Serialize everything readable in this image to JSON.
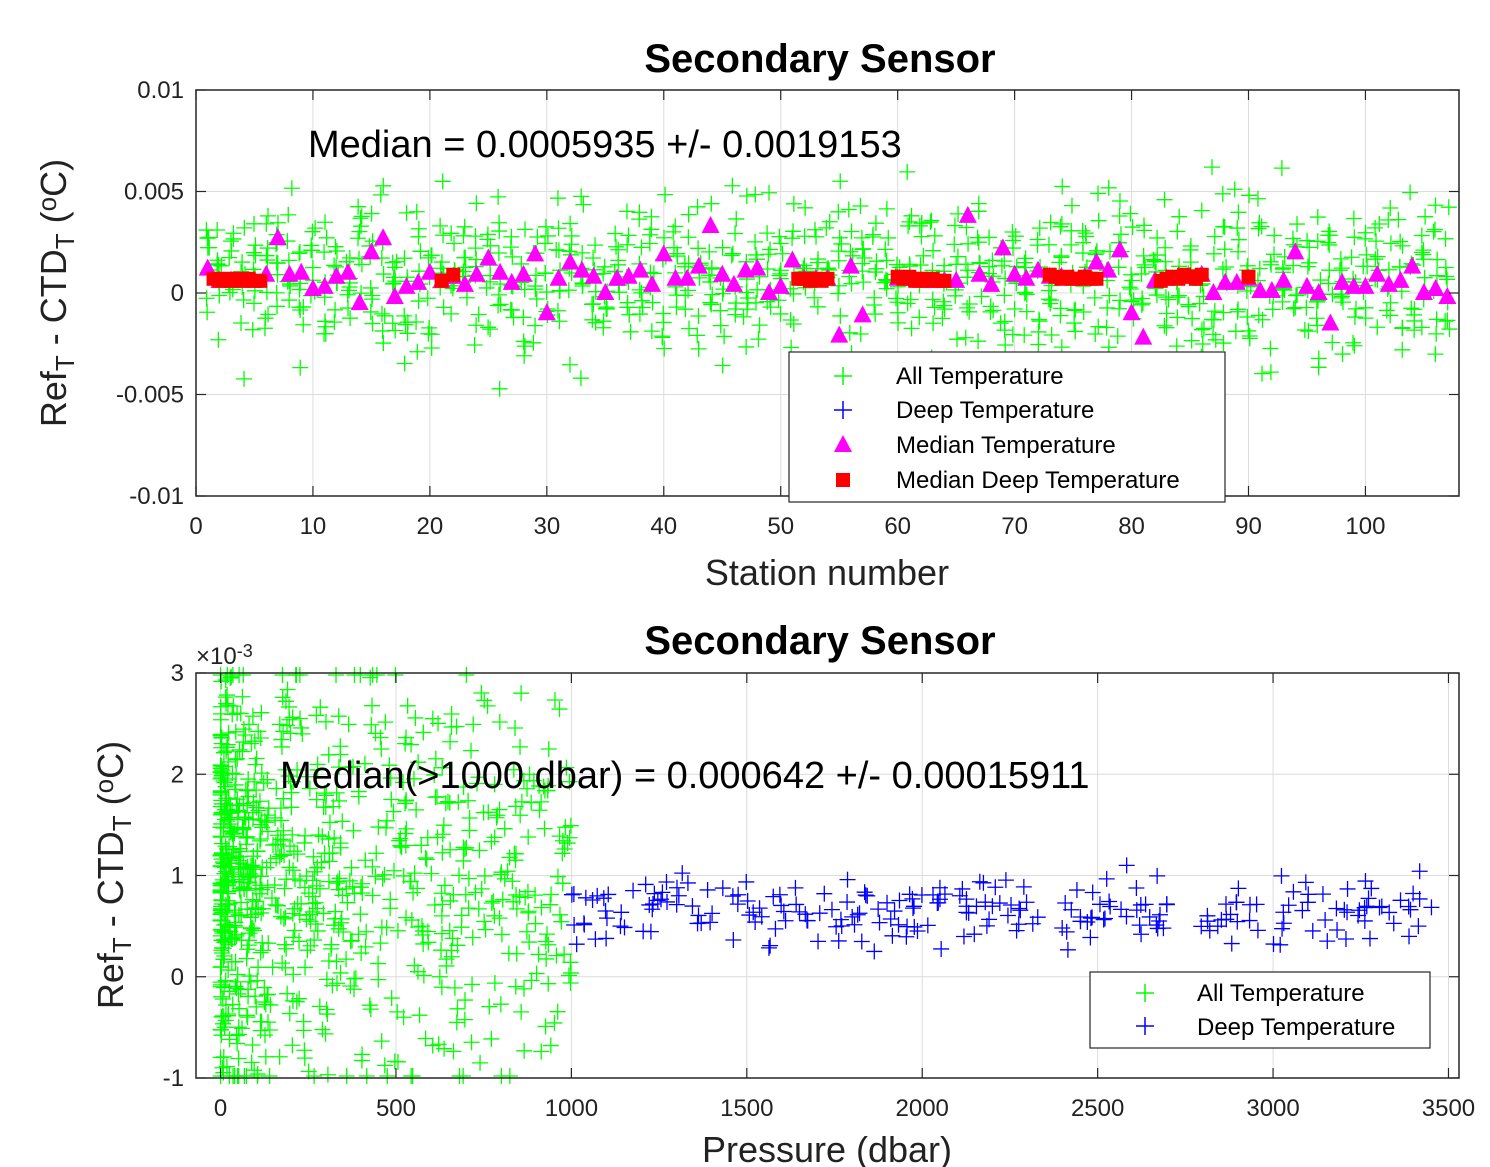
{
  "chart_data": [
    {
      "type": "scatter",
      "title": "Secondary Sensor",
      "xlabel": "Station number",
      "ylabel_main": "Ref",
      "ylabel_sub1": "T",
      "ylabel_mid": " - CTD",
      "ylabel_sub2": "T",
      "ylabel_unit_pre": " (",
      "ylabel_unit_sup": "o",
      "ylabel_unit_post": "C)",
      "xlim": [
        0,
        108
      ],
      "ylim": [
        -0.01,
        0.01
      ],
      "xticks": [
        0,
        10,
        20,
        30,
        40,
        50,
        60,
        70,
        80,
        90,
        100
      ],
      "xtick_labels": [
        "0",
        "10",
        "20",
        "30",
        "40",
        "50",
        "60",
        "70",
        "80",
        "90",
        "100"
      ],
      "yticks": [
        -0.01,
        -0.005,
        0,
        0.005,
        0.01
      ],
      "ytick_labels": [
        "-0.01",
        "-0.005",
        "0",
        "0.005",
        "0.01"
      ],
      "grid": true,
      "annotation": {
        "text": "Median = 0.0005935 +/- 0.0019153",
        "x": 9.5,
        "y": 0.0074
      },
      "legend": {
        "location": "bottom-center",
        "entries": [
          {
            "label": "All Temperature",
            "marker": "plus",
            "color": "#00ff00"
          },
          {
            "label": "Deep Temperature",
            "marker": "plus",
            "color": "#0000ff"
          },
          {
            "label": "Median Temperature",
            "marker": "triangle",
            "color": "#ff00ff"
          },
          {
            "label": "Median Deep Temperature",
            "marker": "square",
            "color": "#ff0000"
          }
        ]
      },
      "series": [
        {
          "name": "All Temperature",
          "marker": "plus",
          "color": "#00ff00",
          "generated": true,
          "x_range": [
            1,
            107
          ],
          "y_center": 0.0008,
          "y_spread": 0.0019,
          "y_clip": [
            -0.005,
            0.0062
          ],
          "per_station": 9
        },
        {
          "name": "Median Temperature",
          "marker": "triangle",
          "color": "#ff00ff",
          "x": [
            1,
            2,
            3,
            4,
            5,
            6,
            7,
            8,
            9,
            10,
            11,
            12,
            13,
            14,
            15,
            16,
            17,
            18,
            19,
            20,
            21,
            22,
            23,
            24,
            25,
            26,
            27,
            28,
            29,
            30,
            31,
            32,
            33,
            34,
            35,
            36,
            37,
            38,
            39,
            40,
            41,
            42,
            43,
            44,
            45,
            46,
            47,
            48,
            49,
            50,
            51,
            52,
            53,
            54,
            55,
            56,
            57,
            58,
            59,
            60,
            61,
            62,
            63,
            64,
            65,
            66,
            67,
            68,
            69,
            70,
            71,
            72,
            73,
            74,
            75,
            76,
            77,
            78,
            79,
            80,
            81,
            82,
            83,
            84,
            85,
            86,
            87,
            88,
            89,
            90,
            91,
            92,
            93,
            94,
            95,
            96,
            97,
            98,
            99,
            100,
            101,
            102,
            103,
            104,
            105,
            106,
            107
          ],
          "y": [
            0.0012,
            0.0006,
            0.0006,
            0.0006,
            0.0006,
            0.0009,
            0.0027,
            0.0009,
            0.001,
            0.0002,
            0.0003,
            0.0008,
            0.001,
            -0.0005,
            0.002,
            0.0027,
            -0.0002,
            0.0003,
            0.0005,
            0.001,
            0.0006,
            0.0008,
            0.0004,
            0.0009,
            0.0017,
            0.001,
            0.0005,
            0.0009,
            0.0019,
            -0.001,
            0.0007,
            0.0015,
            0.0011,
            0.0008,
            0.0,
            0.0007,
            0.0008,
            0.0011,
            0.0004,
            0.0019,
            0.0007,
            0.0007,
            0.0013,
            0.0033,
            0.0009,
            0.0004,
            0.0011,
            0.0012,
            0.0,
            0.0003,
            0.0016,
            0.0007,
            0.0007,
            0.0007,
            -0.0021,
            0.0013,
            -0.0011,
            null,
            null,
            0.0007,
            0.0007,
            0.0006,
            0.0006,
            0.0006,
            0.0006,
            0.0038,
            0.0009,
            0.0004,
            0.0022,
            0.0009,
            0.0007,
            0.0011,
            0.0008,
            0.0008,
            0.0007,
            0.0008,
            0.0015,
            0.0011,
            0.0021,
            -0.001,
            -0.0022,
            0.0006,
            0.0007,
            0.0008,
            0.0008,
            0.0009,
            0.0,
            0.0005,
            0.0005,
            0.0007,
            0.0001,
            0.0001,
            0.0006,
            0.002,
            0.0003,
            0.0,
            -0.0015,
            0.0005,
            0.0003,
            0.0003,
            0.0009,
            0.0004,
            0.0006,
            0.0013,
            0.0,
            0.0002,
            -0.0002
          ]
        },
        {
          "name": "Median Deep Temperature",
          "marker": "square",
          "color": "#ff0000",
          "x": [
            1.5,
            2,
            2.5,
            3,
            3.5,
            4,
            4.5,
            5,
            5.5,
            21,
            22,
            51.5,
            52,
            52.5,
            53,
            53.5,
            54,
            60,
            60.5,
            61,
            61.5,
            62,
            62.5,
            63,
            63.5,
            64,
            73,
            73.5,
            74,
            74.5,
            75,
            75.5,
            76,
            76.5,
            77,
            82.5,
            83,
            83.5,
            84,
            84.5,
            85,
            85.5,
            86,
            90
          ],
          "y": [
            0.0007,
            0.0006,
            0.0007,
            0.0006,
            0.0007,
            0.0006,
            0.0007,
            0.0006,
            0.0006,
            0.0006,
            0.0009,
            0.0007,
            0.0007,
            0.0006,
            0.0007,
            0.0006,
            0.0007,
            0.0008,
            0.0007,
            0.0008,
            0.0006,
            0.0007,
            0.0006,
            0.0007,
            0.0006,
            0.0006,
            0.0009,
            0.0008,
            0.0007,
            0.0008,
            0.0007,
            0.0007,
            0.0008,
            0.0007,
            0.0007,
            0.0006,
            0.0007,
            0.0008,
            0.0007,
            0.0009,
            0.0008,
            0.0007,
            0.0009,
            0.0008
          ]
        }
      ]
    },
    {
      "type": "scatter",
      "title": "Secondary Sensor",
      "xlabel": "Pressure (dbar)",
      "ylabel_main": "Ref",
      "ylabel_sub1": "T",
      "ylabel_mid": " - CTD",
      "ylabel_sub2": "T",
      "ylabel_unit_pre": " (",
      "ylabel_unit_sup": "o",
      "ylabel_unit_post": "C)",
      "exponent_base": "×10",
      "exponent_power": "-3",
      "xlim": [
        -70,
        3530
      ],
      "ylim": [
        -0.001,
        0.003
      ],
      "xticks": [
        0,
        500,
        1000,
        1500,
        2000,
        2500,
        3000,
        3500
      ],
      "xtick_labels": [
        "0",
        "500",
        "1000",
        "1500",
        "2000",
        "2500",
        "3000",
        "3500"
      ],
      "yticks": [
        -0.001,
        0,
        0.001,
        0.002,
        0.003
      ],
      "ytick_labels": [
        "-1",
        "0",
        "1",
        "2",
        "3"
      ],
      "grid": true,
      "annotation": {
        "text": "Median(>1000 dbar) = 0.000642 +/- 0.00015911",
        "x": 170,
        "y": 0.00198
      },
      "legend": {
        "location": "bottom-right",
        "entries": [
          {
            "label": "All Temperature",
            "marker": "plus",
            "color": "#00ff00"
          },
          {
            "label": "Deep Temperature",
            "marker": "plus",
            "color": "#0000ff"
          }
        ]
      },
      "series": [
        {
          "name": "All Temperature",
          "marker": "plus",
          "color": "#00ff00",
          "generated": true,
          "x_range": [
            0,
            1000
          ],
          "y_center": 0.001,
          "y_spread": 0.001,
          "y_clip": [
            -0.00098,
            0.00298
          ],
          "count": 900
        },
        {
          "name": "Deep Temperature",
          "marker": "plus",
          "color": "#0000ff",
          "generated": true,
          "x_range": [
            1000,
            3470
          ],
          "y_center": 0.00065,
          "y_spread": 0.00017,
          "y_clip": [
            0.00025,
            0.0011
          ],
          "count": 240
        }
      ]
    }
  ]
}
